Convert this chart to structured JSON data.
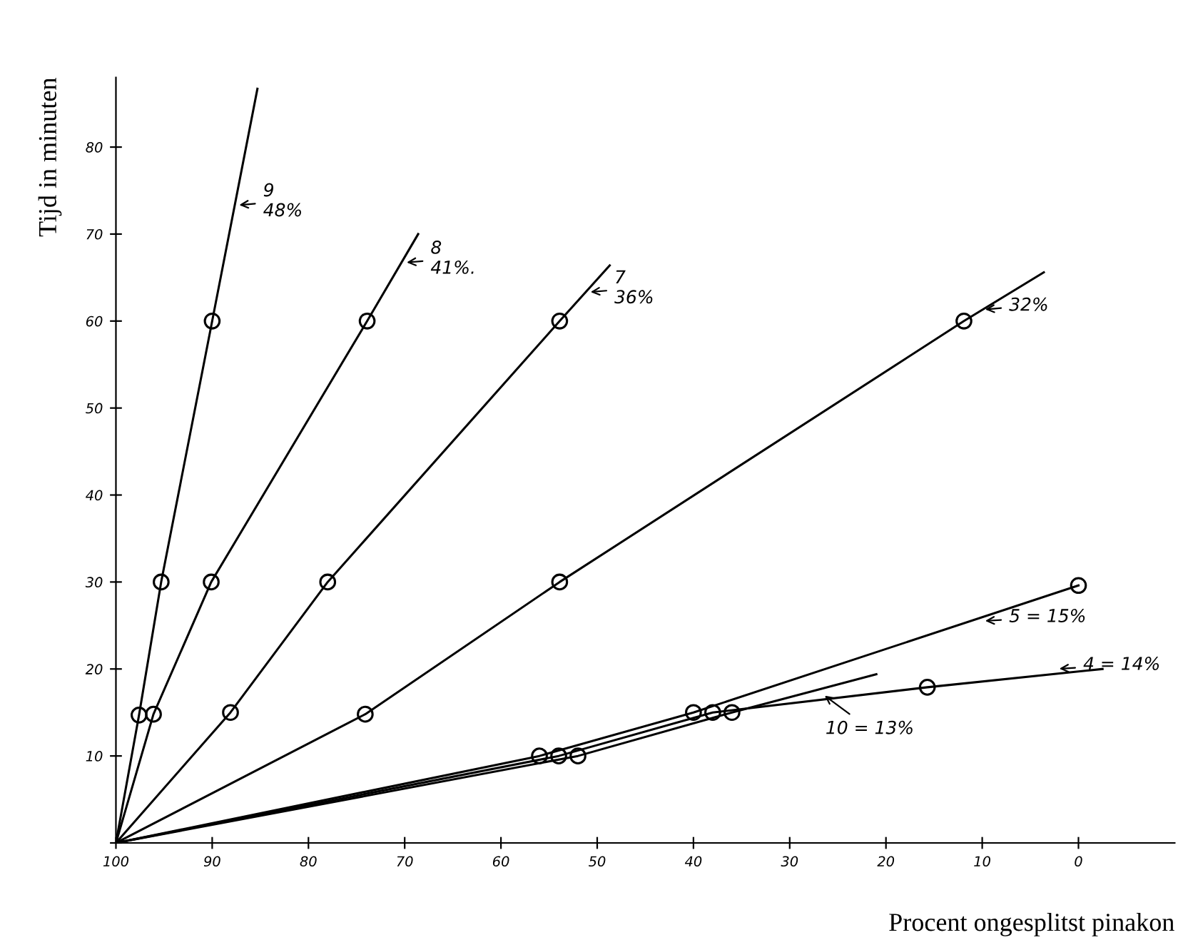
{
  "chart_data": {
    "type": "line",
    "xlabel": "Procent ongesplitst pinakon",
    "ylabel": "Tijd in minuten",
    "xlim": [
      100,
      -10
    ],
    "ylim": [
      0,
      88
    ],
    "xticks": [
      100,
      90,
      80,
      70,
      60,
      50,
      40,
      30,
      20,
      10,
      0
    ],
    "yticks": [
      {
        "value": 0,
        "label": null
      },
      10,
      20,
      30,
      40,
      50,
      60,
      70,
      80
    ],
    "grid": false,
    "legend": false,
    "series": [
      {
        "color": "#000000",
        "marker": "none",
        "x": [
          100,
          97.6,
          95.3,
          90,
          85.3
        ],
        "values": [
          0,
          14.7,
          30,
          60,
          86.7
        ]
      },
      {
        "color": "#000000",
        "marker": "none",
        "x": [
          100,
          96.1,
          90.1,
          73.9,
          68.6
        ],
        "values": [
          0,
          14.8,
          30,
          60,
          70
        ]
      },
      {
        "color": "#000000",
        "marker": "none",
        "x": [
          100,
          88.1,
          78,
          53.9,
          48.7
        ],
        "values": [
          0,
          15,
          30,
          60,
          66.4
        ]
      },
      {
        "color": "#000000",
        "marker": "none",
        "x": [
          100,
          74.1,
          53.9,
          11.9,
          3.6
        ],
        "values": [
          0,
          14.8,
          30,
          60,
          65.6
        ]
      },
      {
        "color": "#000000",
        "marker": "none",
        "x": [
          100,
          56,
          40,
          0
        ],
        "values": [
          0,
          10,
          15,
          29.6
        ]
      },
      {
        "color": "#000000",
        "marker": "none",
        "x": [
          100,
          54,
          38,
          15.7,
          -2.5
        ],
        "values": [
          0,
          10,
          15,
          17.9,
          20
        ]
      },
      {
        "color": "#000000",
        "marker": "none",
        "x": [
          100,
          52,
          36,
          21
        ],
        "values": [
          0,
          10,
          15,
          19.4
        ]
      },
      {
        "type": "scatter",
        "color": "#000000",
        "marker": "circle",
        "x": [
          97.6,
          95.3,
          90,
          96.1,
          90.1,
          73.9,
          88.1,
          78,
          53.9,
          74.1,
          53.9,
          11.9,
          56,
          40,
          0,
          54,
          38,
          15.7,
          52,
          36
        ],
        "values": [
          14.7,
          30,
          60,
          14.8,
          30,
          60,
          15,
          30,
          60,
          14.8,
          30,
          60,
          10,
          15,
          29.6,
          10,
          15,
          17.9,
          10,
          15
        ]
      }
    ],
    "annotations": [
      {
        "text": "9\n48%",
        "x": 87.6,
        "y": 73.3
      },
      {
        "text": "8\n41%.",
        "x": 70.2,
        "y": 66.7
      },
      {
        "text": "7\n36%",
        "x": 51.1,
        "y": 63.3
      },
      {
        "text": "32%",
        "x": 10.1,
        "y": 61.3
      },
      {
        "text": "5 = 15%",
        "x": 10.1,
        "y": 25.5
      },
      {
        "text": "4 = 14%",
        "x": 2.4,
        "y": 20
      },
      {
        "text": "10 = 13%",
        "x": 26.7,
        "y": 17.2
      }
    ]
  }
}
